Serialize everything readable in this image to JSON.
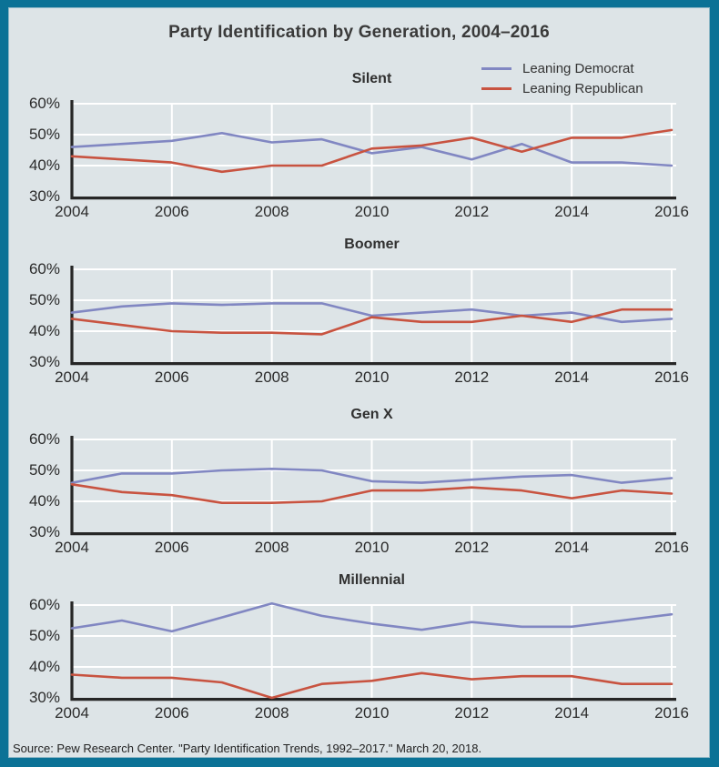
{
  "title": "Party Identification by Generation, 2004–2016",
  "source": "Source: Pew Research Center. \"Party Identification Trends, 1992–2017.\" March 20, 2018.",
  "legend": {
    "position": "top-right",
    "items": [
      {
        "label": "Leaning Democrat",
        "color": "#8187c2"
      },
      {
        "label": "Leaning Republican",
        "color": "#c85340"
      }
    ]
  },
  "colors": {
    "frame_border": "#0b7296",
    "background": "#dde4e7",
    "gridline": "#ffffff",
    "axis": "#262626",
    "democrat_line": "#8187c2",
    "republican_line": "#c85340",
    "text": "#2b2b2b"
  },
  "axes": {
    "y_tick_labels": [
      "60%",
      "50%",
      "40%",
      "30%"
    ],
    "x_tick_labels": [
      "2004",
      "2006",
      "2008",
      "2010",
      "2012",
      "2014",
      "2016"
    ],
    "grid": true
  },
  "chart_data": [
    {
      "type": "line",
      "title": "Silent",
      "x": [
        2004,
        2005,
        2006,
        2007,
        2008,
        2009,
        2010,
        2011,
        2012,
        2013,
        2014,
        2015,
        2016
      ],
      "series": [
        {
          "name": "Leaning Democrat",
          "color": "#8187c2",
          "values": [
            46,
            47,
            48,
            50.5,
            47.5,
            48.5,
            44,
            46,
            42,
            47,
            41,
            41,
            40
          ]
        },
        {
          "name": "Leaning Republican",
          "color": "#c85340",
          "values": [
            43,
            42,
            41,
            38,
            40,
            40,
            45.5,
            46.5,
            49,
            44.5,
            49,
            49,
            51.5
          ]
        }
      ],
      "ylim": [
        30,
        62
      ],
      "yticks": [
        60,
        50,
        40,
        30
      ],
      "xticks": [
        2004,
        2006,
        2008,
        2010,
        2012,
        2014,
        2016
      ]
    },
    {
      "type": "line",
      "title": "Boomer",
      "x": [
        2004,
        2005,
        2006,
        2007,
        2008,
        2009,
        2010,
        2011,
        2012,
        2013,
        2014,
        2015,
        2016
      ],
      "series": [
        {
          "name": "Leaning Democrat",
          "color": "#8187c2",
          "values": [
            46,
            48,
            49,
            48.5,
            49,
            49,
            45,
            46,
            47,
            45,
            46,
            43,
            44
          ]
        },
        {
          "name": "Leaning Republican",
          "color": "#c85340",
          "values": [
            44,
            42,
            40,
            39.5,
            39.5,
            39,
            44.5,
            43,
            43,
            45,
            43,
            47,
            47
          ]
        }
      ],
      "ylim": [
        30,
        62
      ],
      "yticks": [
        60,
        50,
        40,
        30
      ],
      "xticks": [
        2004,
        2006,
        2008,
        2010,
        2012,
        2014,
        2016
      ]
    },
    {
      "type": "line",
      "title": "Gen X",
      "x": [
        2004,
        2005,
        2006,
        2007,
        2008,
        2009,
        2010,
        2011,
        2012,
        2013,
        2014,
        2015,
        2016
      ],
      "series": [
        {
          "name": "Leaning Democrat",
          "color": "#8187c2",
          "values": [
            46,
            49,
            49,
            50,
            50.5,
            50,
            46.5,
            46,
            47,
            48,
            48.5,
            46,
            47.5
          ]
        },
        {
          "name": "Leaning Republican",
          "color": "#c85340",
          "values": [
            45.5,
            43,
            42,
            39.5,
            39.5,
            40,
            43.5,
            43.5,
            44.5,
            43.5,
            41,
            43.5,
            42.5
          ]
        }
      ],
      "ylim": [
        30,
        62
      ],
      "yticks": [
        60,
        50,
        40,
        30
      ],
      "xticks": [
        2004,
        2006,
        2008,
        2010,
        2012,
        2014,
        2016
      ]
    },
    {
      "type": "line",
      "title": "Millennial",
      "x": [
        2004,
        2005,
        2006,
        2007,
        2008,
        2009,
        2010,
        2011,
        2012,
        2013,
        2014,
        2015,
        2016
      ],
      "series": [
        {
          "name": "Leaning Democrat",
          "color": "#8187c2",
          "values": [
            52.5,
            55,
            51.5,
            56,
            60.5,
            56.5,
            54,
            52,
            54.5,
            53,
            53,
            55,
            57
          ]
        },
        {
          "name": "Leaning Republican",
          "color": "#c85340",
          "values": [
            37.5,
            36.5,
            36.5,
            35,
            30,
            34.5,
            35.5,
            38,
            36,
            37,
            37,
            34.5,
            34.5
          ]
        }
      ],
      "ylim": [
        30,
        62
      ],
      "yticks": [
        60,
        50,
        40,
        30
      ],
      "xticks": [
        2004,
        2006,
        2008,
        2010,
        2012,
        2014,
        2016
      ]
    }
  ]
}
